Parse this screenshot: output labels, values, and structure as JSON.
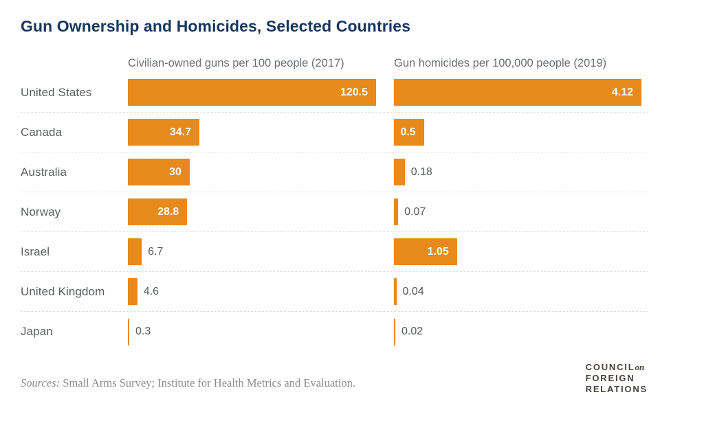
{
  "title": "Gun Ownership and Homicides, Selected Countries",
  "colors": {
    "bar": "#E8891C",
    "title": "#17365D",
    "country_label": "#5A5F64",
    "column_header": "#6B7075",
    "value_outside": "#55595E",
    "value_inside": "#FFFFFF",
    "separator": "#D4D6D8",
    "source_text": "#8A8D90",
    "logo_text": "#4A4238"
  },
  "chart_data": {
    "type": "bar",
    "orientation": "horizontal",
    "title": "Gun Ownership and Homicides, Selected Countries",
    "categories": [
      "United States",
      "Canada",
      "Australia",
      "Norway",
      "Israel",
      "United Kingdom",
      "Japan"
    ],
    "series": [
      {
        "name": "Civilian-owned guns per 100 people (2017)",
        "values": [
          120.5,
          34.7,
          30,
          28.8,
          6.7,
          4.6,
          0.3
        ],
        "labels": [
          "120.5",
          "34.7",
          "30",
          "28.8",
          "6.7",
          "4.6",
          "0.3"
        ],
        "xlim": [
          0,
          120.5
        ]
      },
      {
        "name": "Gun homicides per 100,000 people (2019)",
        "values": [
          4.12,
          0.5,
          0.18,
          0.07,
          1.05,
          0.04,
          0.02
        ],
        "labels": [
          "4.12",
          "0.5",
          "0.18",
          "0.07",
          "1.05",
          "0.04",
          "0.02"
        ],
        "xlim": [
          0,
          4.12
        ]
      }
    ],
    "grid": false,
    "legend_position": "column-headers",
    "row_separator_style": "dotted"
  },
  "footer": {
    "sources_prefix": "Sources:",
    "sources_text": " Small Arms Survey; Institute for Health Metrics and Evaluation.",
    "logo": {
      "line1": "Council",
      "line1_suffix": "on",
      "line2": "Foreign",
      "line3": "Relations"
    }
  }
}
